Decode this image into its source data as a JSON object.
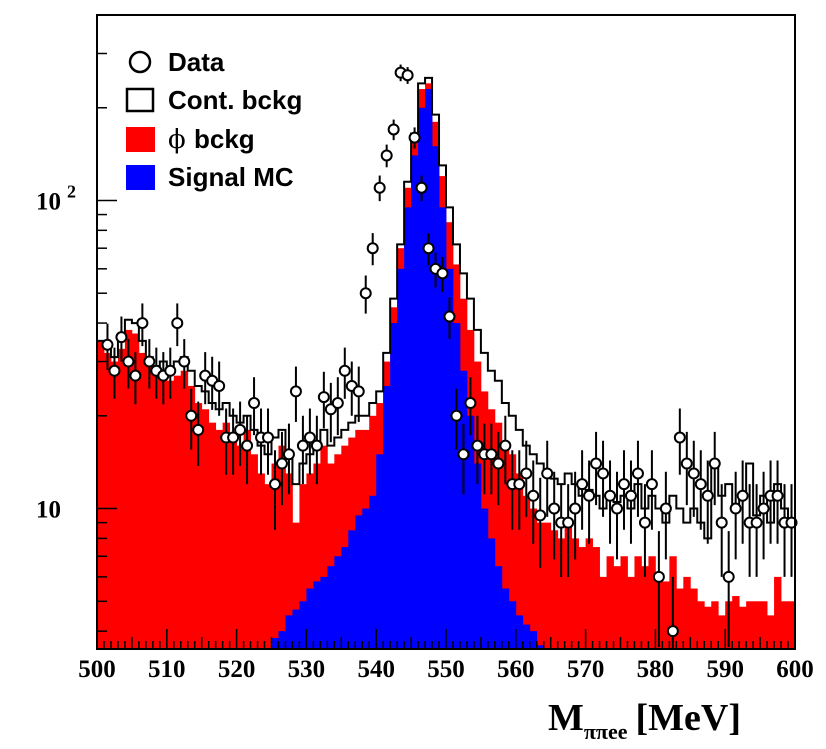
{
  "chart_data": {
    "type": "bar",
    "title": "",
    "xlabel": {
      "main": "M",
      "subscript": "ππee",
      "unit": "[MeV]"
    },
    "ylabel": "",
    "xlim": [
      500,
      600
    ],
    "ylim": [
      3.5,
      400
    ],
    "yscale": "log",
    "grid": false,
    "legend_position": "top-left",
    "x_ticks": [
      500,
      510,
      520,
      530,
      540,
      550,
      560,
      570,
      580,
      590,
      600
    ],
    "y_tick_labels": [
      {
        "value": 10,
        "base": "10",
        "exp": ""
      },
      {
        "value": 100,
        "base": "10",
        "exp": "2"
      }
    ],
    "legend": [
      {
        "label": "Data",
        "symbol": "open-circle",
        "series": "data"
      },
      {
        "label": "Cont. bckg",
        "symbol": "open-box",
        "series": "cont_bckg"
      },
      {
        "label": "bckg",
        "prefix": "ϕ",
        "symbol": "filled-box",
        "color": "#ff0000",
        "series": "phi_bckg"
      },
      {
        "label": "Signal MC",
        "symbol": "filled-box",
        "color": "#0000ff",
        "series": "signal_mc"
      }
    ],
    "colors": {
      "phi_bckg": "#ff0000",
      "signal_mc": "#0000ff",
      "data": "#000000",
      "cont_bckg": "#000000"
    },
    "bin_edges": {
      "start": 500,
      "end": 600,
      "width": 1
    },
    "series": [
      {
        "name": "Signal MC",
        "key": "signal_mc",
        "type": "histogram-stacked",
        "values": [
          0,
          0,
          0,
          0,
          0,
          0,
          0,
          0,
          0,
          0,
          0,
          0,
          0,
          0,
          0,
          0,
          0,
          0,
          0,
          0,
          0,
          0,
          0,
          0,
          3.5,
          3.8,
          4,
          4.5,
          4.7,
          5,
          5.5,
          5.8,
          6,
          6.5,
          7,
          7.5,
          8.5,
          9.5,
          10,
          11,
          15,
          25,
          40,
          60,
          95,
          140,
          200,
          230,
          150,
          95,
          60,
          40,
          28,
          20,
          14,
          10,
          8,
          6.5,
          5.5,
          5,
          4.5,
          4.2,
          4,
          3.6,
          0,
          0,
          0,
          0,
          0,
          0,
          0,
          0,
          0,
          0,
          0,
          0,
          0,
          0,
          0,
          0,
          0,
          0,
          0,
          0,
          0,
          0,
          0,
          0,
          0,
          0,
          0,
          0,
          0,
          0,
          0,
          0,
          0,
          0,
          0,
          0
        ]
      },
      {
        "name": "ϕ bckg",
        "key": "phi_bckg",
        "type": "histogram-stacked",
        "values": [
          35,
          32,
          30,
          33,
          38,
          37,
          32,
          29,
          27,
          28,
          26,
          27,
          28,
          25,
          22,
          21,
          19,
          18,
          19,
          17,
          16,
          18,
          15,
          13,
          12,
          14,
          16,
          13,
          9,
          12,
          13,
          14,
          16,
          14,
          15,
          16,
          17,
          18,
          18,
          20,
          22,
          30,
          45,
          70,
          110,
          160,
          230,
          240,
          180,
          120,
          85,
          62,
          48,
          38,
          30,
          24,
          21,
          19,
          16,
          15,
          13,
          11,
          10,
          9,
          9,
          8.5,
          8,
          9,
          8,
          7.5,
          8,
          7.5,
          6,
          7,
          6.5,
          7,
          6,
          7,
          6.5,
          7,
          6,
          5.8,
          7,
          5.5,
          6,
          5.5,
          5,
          4.8,
          5,
          4.5,
          5,
          5.2,
          4.8,
          5,
          5,
          5,
          4.5,
          6,
          5,
          5
        ]
      },
      {
        "name": "Cont. bckg",
        "key": "cont_bckg",
        "type": "histogram-outline",
        "values": [
          35,
          33,
          31,
          36,
          41,
          40,
          35,
          31,
          29,
          30,
          28,
          30,
          31,
          28,
          25,
          24,
          22,
          21,
          22,
          20,
          19,
          20,
          18,
          16,
          15,
          17,
          18,
          15,
          12,
          14,
          15,
          16,
          18,
          16,
          17,
          18,
          19,
          20,
          20,
          22,
          24,
          32,
          48,
          72,
          115,
          165,
          240,
          250,
          190,
          130,
          95,
          72,
          58,
          48,
          38,
          32,
          28,
          26,
          22,
          20,
          18,
          16,
          15,
          14,
          13,
          12.5,
          12,
          13,
          12,
          11,
          11.5,
          11,
          10,
          11,
          10.5,
          11,
          10,
          12,
          10,
          11,
          10,
          9,
          11,
          10,
          9,
          10,
          9,
          8,
          14,
          11,
          12,
          10,
          11,
          14,
          9.5,
          11,
          9,
          12,
          10,
          9
        ]
      },
      {
        "name": "Data",
        "key": "data",
        "type": "points-with-errors",
        "x": [
          501.5,
          502.5,
          503.5,
          504.5,
          505.5,
          506.5,
          507.5,
          508.5,
          509.5,
          510.5,
          511.5,
          512.5,
          513.5,
          514.5,
          515.5,
          516.5,
          517.5,
          518.5,
          519.5,
          520.5,
          521.5,
          522.5,
          523.5,
          524.5,
          525.5,
          526.5,
          527.5,
          528.5,
          529.5,
          530.5,
          531.5,
          532.5,
          533.5,
          534.5,
          535.5,
          536.5,
          537.5,
          538.5,
          539.5,
          540.5,
          541.5,
          542.5,
          543.5,
          544.5,
          545.5,
          546.5,
          547.5,
          548.5,
          549.5,
          550.5,
          551.5,
          552.5,
          553.5,
          554.5,
          555.5,
          556.5,
          557.5,
          558.5,
          559.5,
          560.5,
          561.5,
          562.5,
          563.5,
          564.5,
          565.5,
          566.5,
          567.5,
          568.5,
          569.5,
          570.5,
          571.5,
          572.5,
          573.5,
          574.5,
          575.5,
          576.5,
          577.5,
          578.5,
          579.5,
          580.5,
          581.5,
          582.5,
          583.5,
          584.5,
          585.5,
          586.5,
          587.5,
          588.5,
          589.5,
          590.5,
          591.5,
          592.5,
          593.5,
          594.5,
          595.5,
          596.5,
          597.5,
          598.5,
          599.5
        ],
        "y": [
          34,
          28,
          36,
          30,
          27,
          40,
          30,
          28,
          27,
          28,
          40,
          30,
          20,
          18,
          27,
          26,
          25,
          17,
          17,
          18,
          16,
          22,
          17,
          17,
          12,
          14,
          15,
          24,
          16,
          17,
          16,
          23,
          21,
          22,
          28,
          25,
          24,
          50,
          70,
          110,
          140,
          170,
          260,
          255,
          160,
          110,
          70,
          60,
          58,
          42,
          20,
          15,
          22,
          16,
          15,
          15,
          14,
          16,
          12,
          12,
          13,
          11,
          9.5,
          13,
          10,
          9,
          9,
          10,
          12,
          11,
          14,
          13,
          11,
          10,
          12,
          11,
          13,
          9,
          12,
          6,
          10,
          4,
          17,
          14,
          13,
          12,
          11,
          14,
          9,
          6,
          10,
          11,
          9,
          9,
          10,
          11,
          11,
          9,
          9
        ]
      }
    ]
  }
}
